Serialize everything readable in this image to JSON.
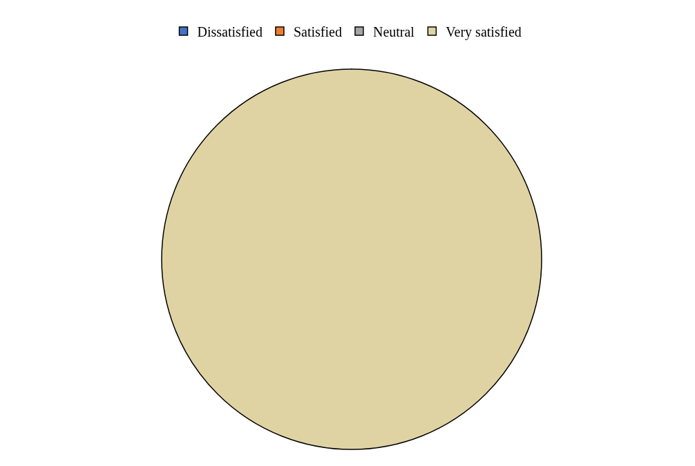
{
  "chart_data": {
    "type": "pie",
    "categories": [
      "Dissatisfied",
      "Satisfied",
      "Neutral",
      "Very satisfied"
    ],
    "values": [
      0,
      0,
      0,
      100
    ],
    "colors": [
      "#4472c4",
      "#ed7d31",
      "#a5a5a5",
      "#e0d3a3"
    ],
    "legend": "top"
  }
}
